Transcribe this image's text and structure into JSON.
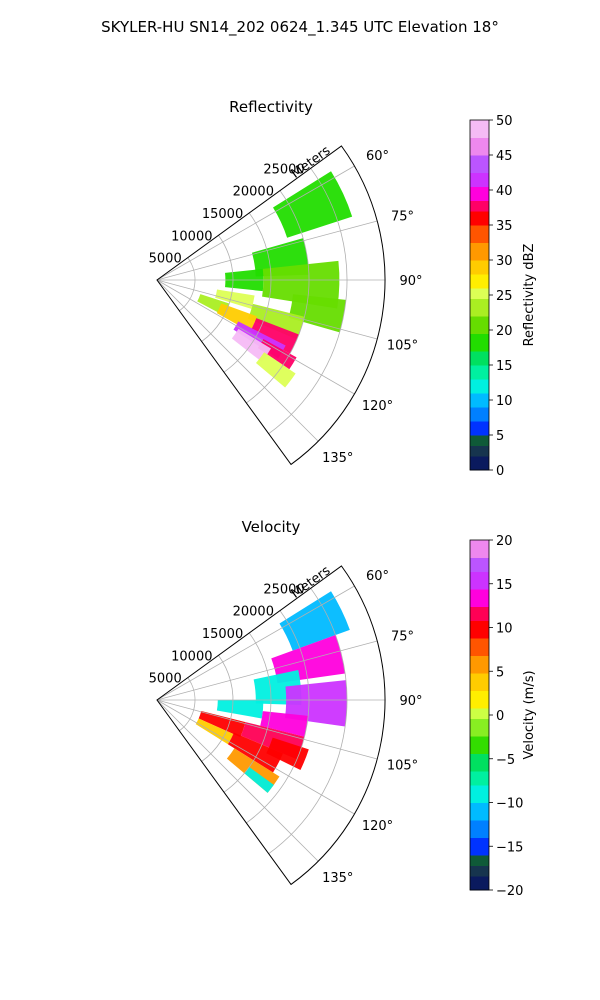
{
  "figure_title": "SKYLER-HU  SN14_202  0624_1.345 UTC Elevation 18°",
  "chart_data": [
    {
      "type": "heatmap",
      "subtype": "polar-sector radar PPI",
      "title": "Reflectivity",
      "radial_label": "Meters",
      "radial_ticks": [
        5000,
        10000,
        15000,
        20000,
        25000
      ],
      "radial_tick_labels": [
        "5000",
        "10000",
        "15000",
        "20000",
        "25000"
      ],
      "rlim": [
        0,
        30000
      ],
      "angle_ticks_deg": [
        60,
        75,
        90,
        105,
        120,
        135
      ],
      "angle_tick_labels": [
        "60°",
        "75°",
        "90°",
        "105°",
        "120°",
        "135°"
      ],
      "thetalim": [
        54,
        144
      ],
      "grid": true,
      "colorbar": {
        "label": "Reflectivity dBZ",
        "range": [
          0,
          50
        ],
        "ticks": [
          0,
          5,
          10,
          15,
          20,
          25,
          30,
          35,
          40,
          45,
          50
        ],
        "tick_labels": [
          "0",
          "5",
          "10",
          "15",
          "20",
          "25",
          "30",
          "35",
          "40",
          "45",
          "50"
        ],
        "stops": [
          [
            0,
            "#0a1a5e"
          ],
          [
            2,
            "#16344e"
          ],
          [
            3.5,
            "#0f5a38"
          ],
          [
            5,
            "#0033ff"
          ],
          [
            7,
            "#0080ff"
          ],
          [
            9,
            "#00bbff"
          ],
          [
            11,
            "#00f0e0"
          ],
          [
            13,
            "#00f0a0"
          ],
          [
            15,
            "#00e060"
          ],
          [
            17,
            "#22dd00"
          ],
          [
            19.5,
            "#66dd00"
          ],
          [
            22,
            "#aaee22"
          ],
          [
            24.5,
            "#ddff55"
          ],
          [
            26,
            "#ffee00"
          ],
          [
            28,
            "#ffcc00"
          ],
          [
            30,
            "#ff9900"
          ],
          [
            32.5,
            "#ff5500"
          ],
          [
            35,
            "#ff0000"
          ],
          [
            37,
            "#ff0066"
          ],
          [
            38.5,
            "#ff00dd"
          ],
          [
            40.5,
            "#cc33ff"
          ],
          [
            42.5,
            "#bb55ff"
          ],
          [
            45,
            "#ee88ee"
          ],
          [
            47.5,
            "#f5bbf5"
          ],
          [
            50,
            "#fde8fd"
          ]
        ]
      },
      "cells": [
        {
          "r": [
            18000,
            27000
          ],
          "theta": [
            58,
            72
          ],
          "value": 17
        },
        {
          "r": [
            13000,
            20000
          ],
          "theta": [
            74,
            88
          ],
          "value": 19
        },
        {
          "r": [
            9000,
            14000
          ],
          "theta": [
            84,
            96
          ],
          "value": 17
        },
        {
          "r": [
            14000,
            24000
          ],
          "theta": [
            84,
            99
          ],
          "value": 21
        },
        {
          "r": [
            18000,
            25000
          ],
          "theta": [
            96,
            106
          ],
          "value": 20
        },
        {
          "r": [
            8000,
            13000
          ],
          "theta": [
            99,
            107
          ],
          "value": 25
        },
        {
          "r": [
            13000,
            20000
          ],
          "theta": [
            104,
            113
          ],
          "value": 22
        },
        {
          "r": [
            6000,
            10000
          ],
          "theta": [
            108,
            118
          ],
          "value": 22
        },
        {
          "r": [
            9000,
            14000
          ],
          "theta": [
            110,
            119
          ],
          "value": 28
        },
        {
          "r": [
            14000,
            20000
          ],
          "theta": [
            111,
            119
          ],
          "value": 38
        },
        {
          "r": [
            12000,
            19000
          ],
          "theta": [
            117,
            123
          ],
          "value": 41
        },
        {
          "r": [
            16000,
            21000
          ],
          "theta": [
            119,
            124
          ],
          "value": 37
        },
        {
          "r": [
            12500,
            17500
          ],
          "theta": [
            121,
            128
          ],
          "value": 48
        },
        {
          "r": [
            17000,
            22000
          ],
          "theta": [
            124,
            130
          ],
          "value": 25
        }
      ]
    },
    {
      "type": "heatmap",
      "subtype": "polar-sector radar PPI",
      "title": "Velocity",
      "radial_label": "Meters",
      "radial_ticks": [
        5000,
        10000,
        15000,
        20000,
        25000
      ],
      "radial_tick_labels": [
        "5000",
        "10000",
        "15000",
        "20000",
        "25000"
      ],
      "rlim": [
        0,
        30000
      ],
      "angle_ticks_deg": [
        60,
        75,
        90,
        105,
        120,
        135
      ],
      "angle_tick_labels": [
        "60°",
        "75°",
        "90°",
        "105°",
        "120°",
        "135°"
      ],
      "thetalim": [
        54,
        144
      ],
      "grid": true,
      "colorbar": {
        "label": "Velocity (m/s)",
        "range": [
          -20,
          20
        ],
        "ticks": [
          -20,
          -15,
          -10,
          -5,
          0,
          5,
          10,
          15,
          20
        ],
        "tick_labels": [
          "−20",
          "−15",
          "−10",
          "−5",
          "0",
          "5",
          "10",
          "15",
          "20"
        ],
        "stops": [
          [
            -20,
            "#0a1a5e"
          ],
          [
            -18.5,
            "#16344e"
          ],
          [
            -17,
            "#0f5a38"
          ],
          [
            -16,
            "#0033ff"
          ],
          [
            -14,
            "#0080ff"
          ],
          [
            -12,
            "#00bbff"
          ],
          [
            -10,
            "#00f0e0"
          ],
          [
            -8,
            "#00f0a0"
          ],
          [
            -6.5,
            "#00e060"
          ],
          [
            -4.5,
            "#33dd00"
          ],
          [
            -2.5,
            "#88ee22"
          ],
          [
            -0.5,
            "#ccff44"
          ],
          [
            1,
            "#ffee00"
          ],
          [
            3,
            "#ffcc00"
          ],
          [
            5,
            "#ff9900"
          ],
          [
            7,
            "#ff5500"
          ],
          [
            9,
            "#ff0000"
          ],
          [
            11,
            "#ff0055"
          ],
          [
            12.5,
            "#ff00dd"
          ],
          [
            14.5,
            "#cc33ff"
          ],
          [
            16.5,
            "#bb55ff"
          ],
          [
            18,
            "#ee88ee"
          ],
          [
            20,
            "#fde8fd"
          ]
        ]
      },
      "cells": [
        {
          "r": [
            19000,
            27000
          ],
          "theta": [
            58,
            70
          ],
          "value": -12
        },
        {
          "r": [
            16000,
            25000
          ],
          "theta": [
            70,
            82
          ],
          "value": 14
        },
        {
          "r": [
            13000,
            19000
          ],
          "theta": [
            78,
            92
          ],
          "value": -10
        },
        {
          "r": [
            17000,
            25000
          ],
          "theta": [
            84,
            98
          ],
          "value": 15
        },
        {
          "r": [
            8000,
            14000
          ],
          "theta": [
            90,
            100
          ],
          "value": -9
        },
        {
          "r": [
            14000,
            20000
          ],
          "theta": [
            96,
            104
          ],
          "value": 14
        },
        {
          "r": [
            6000,
            12000
          ],
          "theta": [
            104,
            114
          ],
          "value": 10
        },
        {
          "r": [
            12000,
            20000
          ],
          "theta": [
            104,
            113
          ],
          "value": 12
        },
        {
          "r": [
            6000,
            11000
          ],
          "theta": [
            114,
            122
          ],
          "value": 4
        },
        {
          "r": [
            11000,
            18000
          ],
          "theta": [
            113,
            122
          ],
          "value": 9
        },
        {
          "r": [
            16000,
            21000
          ],
          "theta": [
            108,
            116
          ],
          "value": 10
        },
        {
          "r": [
            12000,
            19000
          ],
          "theta": [
            122,
            130
          ],
          "value": 6
        },
        {
          "r": [
            15000,
            19000
          ],
          "theta": [
            126,
            130
          ],
          "value": -9
        }
      ]
    }
  ]
}
